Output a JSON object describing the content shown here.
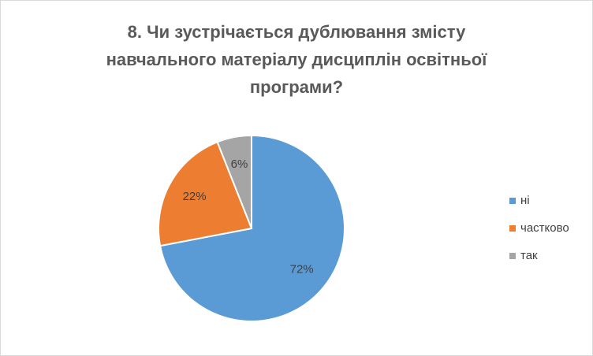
{
  "chart_data": {
    "type": "pie",
    "title": "8. Чи зустрічається дублювання змісту навчального матеріалу дисциплін освітньої програми?",
    "categories": [
      "ні",
      "частково",
      "так"
    ],
    "values": [
      72,
      22,
      6
    ],
    "value_labels": [
      "72%",
      "22%",
      "6%"
    ],
    "colors": [
      "#5b9bd5",
      "#ed7d31",
      "#a5a5a5"
    ],
    "legend": "right"
  }
}
